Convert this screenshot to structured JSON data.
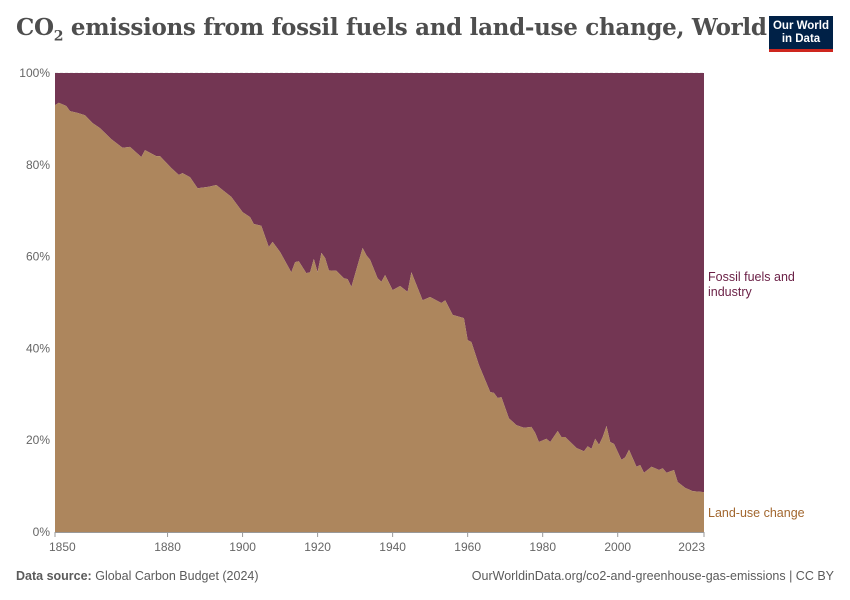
{
  "title": {
    "main": "CO",
    "sub": "2",
    "rest": " emissions from fossil fuels and land-use change, World"
  },
  "logo": {
    "line1": "Our World",
    "line2": "in Data"
  },
  "footer": {
    "source_label": "Data source:",
    "source_value": "Global Carbon Budget (2024)",
    "url": "OurWorldinData.org/co2-and-greenhouse-gas-emissions | CC BY"
  },
  "chart_data": {
    "type": "area",
    "stacked": "percent",
    "title": "CO₂ emissions from fossil fuels and land-use change, World",
    "xlim": [
      1850,
      2023
    ],
    "ylim": [
      0,
      100
    ],
    "x_ticks": [
      "1850",
      "1880",
      "1900",
      "1920",
      "1940",
      "1960",
      "1980",
      "2000",
      "2023"
    ],
    "y_ticks": [
      "0%",
      "20%",
      "40%",
      "60%",
      "80%",
      "100%"
    ],
    "grid": "horizontal dashed",
    "legend": "right, inline labels",
    "x": [
      1850,
      1851,
      1853,
      1854,
      1856,
      1858,
      1860,
      1862,
      1865,
      1868,
      1870,
      1873,
      1874,
      1877,
      1878,
      1881,
      1883,
      1884,
      1886,
      1888,
      1891,
      1893,
      1897,
      1900,
      1902,
      1903,
      1905,
      1907,
      1908,
      1910,
      1913,
      1914,
      1915,
      1917,
      1918,
      1919,
      1920,
      1921,
      1922,
      1923,
      1925,
      1927,
      1928,
      1929,
      1932,
      1933,
      1934,
      1936,
      1937,
      1938,
      1940,
      1942,
      1944,
      1945,
      1948,
      1950,
      1953,
      1954,
      1956,
      1959,
      1960,
      1961,
      1963,
      1966,
      1967,
      1968,
      1969,
      1971,
      1973,
      1975,
      1977,
      1978,
      1979,
      1981,
      1982,
      1984,
      1985,
      1986,
      1989,
      1991,
      1992,
      1993,
      1994,
      1995,
      1996,
      1997,
      1998,
      1999,
      2001,
      2002,
      2003,
      2005,
      2006,
      2007,
      2009,
      2010,
      2011,
      2012,
      2013,
      2015,
      2016,
      2018,
      2020,
      2023
    ],
    "series": [
      {
        "name": "Land-use change",
        "color": "#ad865d",
        "label_color": "#a2672f",
        "values": [
          93,
          93.5,
          92.8,
          91.7,
          91.3,
          90.8,
          89.1,
          88,
          85.6,
          83.7,
          83.9,
          81.7,
          83.2,
          81.9,
          81.9,
          79.3,
          77.8,
          78.2,
          77.3,
          74.9,
          75.2,
          75.6,
          73,
          69.7,
          68.6,
          67.1,
          66.7,
          62.1,
          63.2,
          61,
          56.6,
          58.8,
          59,
          56.4,
          56.6,
          59.5,
          56.6,
          60.8,
          59.7,
          57,
          56.9,
          55.3,
          55.1,
          53.4,
          61.9,
          60.3,
          59.3,
          55.3,
          54.5,
          56,
          52.7,
          53.6,
          52.3,
          56.6,
          50.5,
          51.2,
          49.9,
          50.5,
          47.3,
          46.6,
          41.8,
          41.4,
          36.4,
          30.5,
          30.3,
          29.2,
          29.4,
          24.8,
          23.3,
          22.7,
          22.9,
          21.6,
          19.6,
          20.3,
          19.6,
          22,
          20.7,
          20.7,
          18.3,
          17.6,
          18.7,
          18.1,
          20.3,
          19,
          20.7,
          23.1,
          19.6,
          19.2,
          15.7,
          16.3,
          17.9,
          14.2,
          14.6,
          12.9,
          14.2,
          13.9,
          13.5,
          13.9,
          12.9,
          13.5,
          10.9,
          9.6,
          8.9,
          8.7
        ]
      },
      {
        "name": "Fossil fuels and industry",
        "name_line1": "Fossil fuels and",
        "name_line2": "industry",
        "color": "#733653",
        "label_color": "#6a1f45",
        "values": "remainder to 100%"
      }
    ]
  }
}
